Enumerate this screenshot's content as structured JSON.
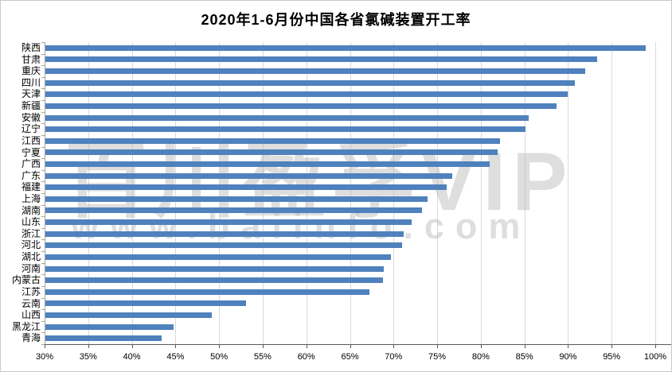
{
  "title": "2020年1-6月份中国各省氯碱装置开工率",
  "watermark": {
    "line1": "百川盈孚VIP",
    "line2": "www.baiinfo.com"
  },
  "colors": {
    "bar": "#4F81BD",
    "gridline": "#D9D9D9",
    "axis_dark": "#595959",
    "axis_light": "#A6A6A6",
    "watermark": "#B0B0B0"
  },
  "chart_data": {
    "type": "bar",
    "orientation": "horizontal",
    "title": "2020年1-6月份中国各省氯碱装置开工率",
    "categories": [
      "陕西",
      "甘肃",
      "重庆",
      "四川",
      "天津",
      "新疆",
      "安徽",
      "辽宁",
      "江西",
      "宁夏",
      "广西",
      "广东",
      "福建",
      "上海",
      "湖南",
      "山东",
      "浙江",
      "河北",
      "湖北",
      "河南",
      "内蒙古",
      "江苏",
      "云南",
      "山西",
      "黑龙江",
      "青海"
    ],
    "values": [
      98.9,
      93.3,
      92.0,
      90.8,
      90.0,
      88.7,
      85.5,
      85.1,
      82.2,
      81.9,
      81.0,
      76.7,
      76.1,
      73.9,
      73.3,
      72.1,
      71.2,
      71.0,
      69.7,
      68.9,
      68.8,
      67.2,
      53.1,
      49.2,
      44.8,
      43.4
    ],
    "value_unit": "%",
    "xlabel": "",
    "ylabel": "",
    "xlim": [
      30,
      100
    ],
    "x_tick_step": 5,
    "x_tick_labels": [
      "30%",
      "35%",
      "40%",
      "45%",
      "50%",
      "55%",
      "60%",
      "65%",
      "70%",
      "75%",
      "80%",
      "85%",
      "90%",
      "95%",
      "100%"
    ],
    "grid": true,
    "legend": false
  }
}
